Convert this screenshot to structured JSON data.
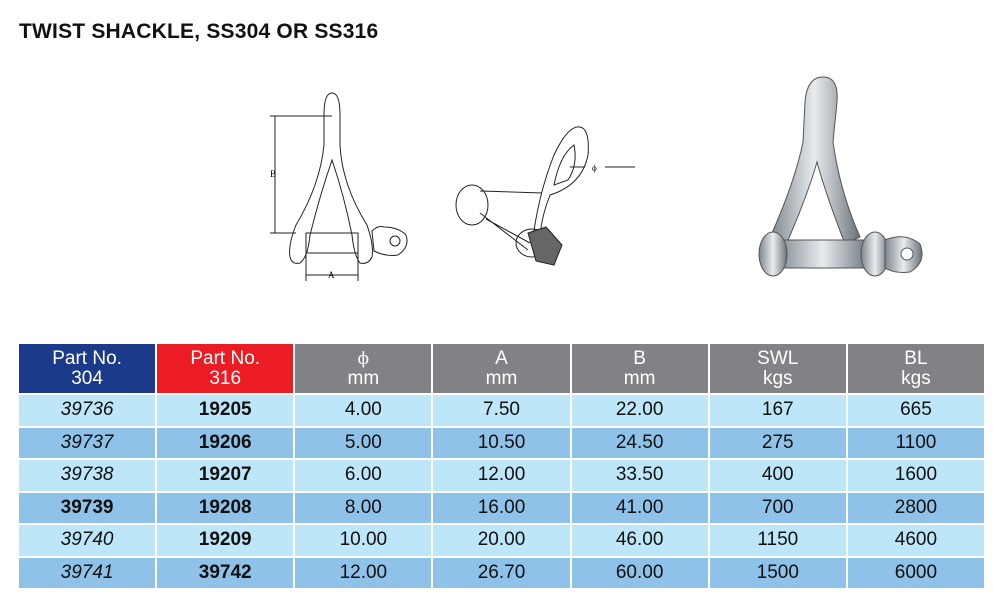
{
  "title": "TWIST SHACKLE, SS304 OR SS316",
  "diagram_labels": {
    "a": "A",
    "b": "B",
    "phi": "ϕ"
  },
  "colors": {
    "part304_header": "#1c3a8a",
    "part316_header": "#ec1c24",
    "dim_header": "#818285",
    "row_light": "#bde6f9",
    "row_dark": "#8fc2e8"
  },
  "table": {
    "headers": [
      {
        "line1": "Part No.",
        "line2": "304"
      },
      {
        "line1": "Part No.",
        "line2": "316"
      },
      {
        "line1": "ϕ",
        "line2": "mm"
      },
      {
        "line1": "A",
        "line2": "mm"
      },
      {
        "line1": "B",
        "line2": "mm"
      },
      {
        "line1": "SWL",
        "line2": "kgs"
      },
      {
        "line1": "BL",
        "line2": "kgs"
      }
    ],
    "rows": [
      [
        "39736",
        "19205",
        "4.00",
        "7.50",
        "22.00",
        "167",
        "665"
      ],
      [
        "39737",
        "19206",
        "5.00",
        "10.50",
        "24.50",
        "275",
        "1100"
      ],
      [
        "39738",
        "19207",
        "6.00",
        "12.00",
        "33.50",
        "400",
        "1600"
      ],
      [
        "39739",
        "19208",
        "8.00",
        "16.00",
        "41.00",
        "700",
        "2800"
      ],
      [
        "39740",
        "19209",
        "10.00",
        "20.00",
        "46.00",
        "1150",
        "4600"
      ],
      [
        "39741",
        "39742",
        "12.00",
        "26.70",
        "60.00",
        "1500",
        "6000"
      ]
    ]
  }
}
